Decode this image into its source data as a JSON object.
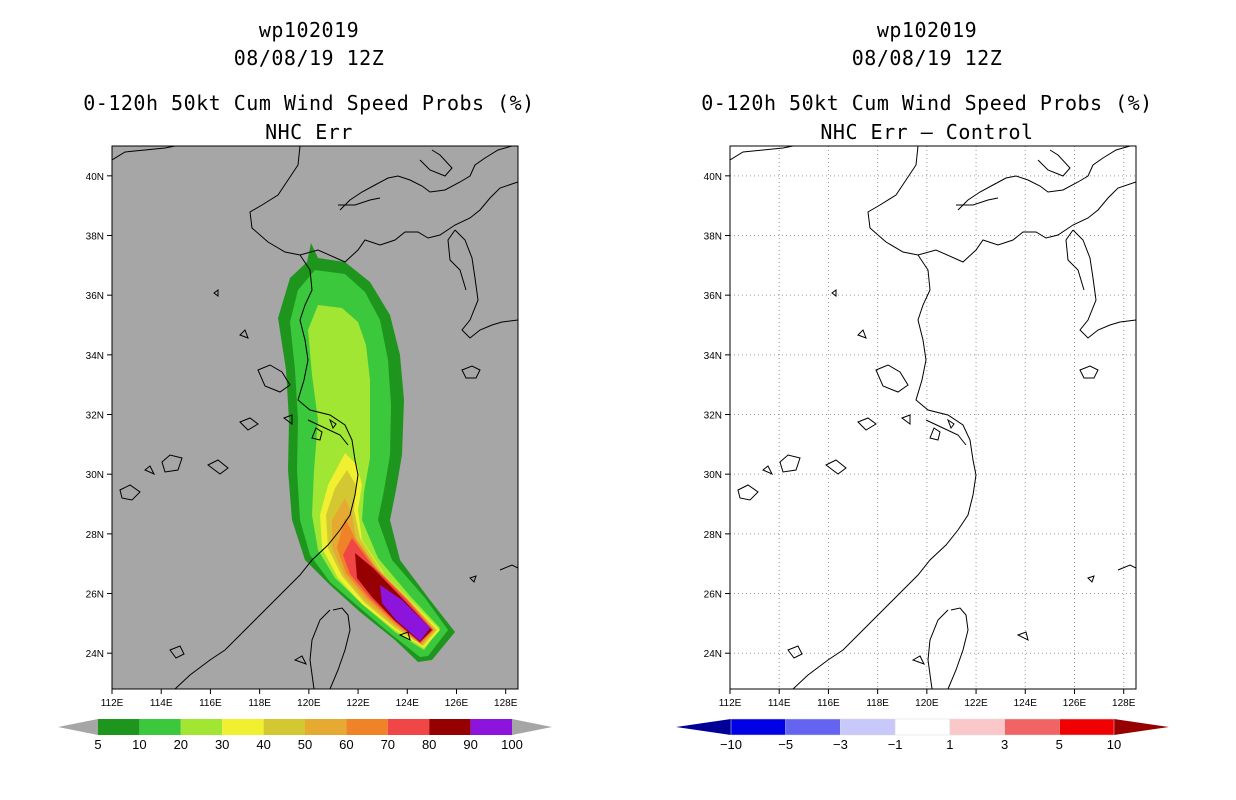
{
  "colors": {
    "land_background": "#a6a6a6",
    "coast": "#000000",
    "grid": "#9a9a9a"
  },
  "panels": [
    {
      "title_storm": "wp102019",
      "title_date": "08/08/19 12Z",
      "title_product": "0-120h 50kt Cum Wind Speed Probs (%)",
      "title_sub": "NHC Err",
      "x_ticks": [
        "112E",
        "114E",
        "116E",
        "118E",
        "120E",
        "122E",
        "124E",
        "126E",
        "128E"
      ],
      "y_ticks": [
        "24N",
        "26N",
        "28N",
        "30N",
        "32N",
        "34N",
        "36N",
        "38N",
        "40N"
      ],
      "colorbar_labels": [
        "5",
        "10",
        "20",
        "30",
        "40",
        "50",
        "60",
        "70",
        "80",
        "90",
        "100"
      ],
      "colorbar_colors": [
        "#1e961e",
        "#3cc83c",
        "#a0e632",
        "#f0f030",
        "#d4c832",
        "#e6aa32",
        "#f08228",
        "#f04646",
        "#960000",
        "#8c14dc"
      ],
      "colorbar_end_color": "#a6a6a6"
    },
    {
      "title_storm": "wp102019",
      "title_date": "08/08/19 12Z",
      "title_product": "0-120h 50kt Cum Wind Speed Probs (%)",
      "title_sub": "NHC Err – Control",
      "x_ticks": [
        "112E",
        "114E",
        "116E",
        "118E",
        "120E",
        "122E",
        "124E",
        "126E",
        "128E"
      ],
      "y_ticks": [
        "24N",
        "26N",
        "28N",
        "30N",
        "32N",
        "34N",
        "36N",
        "38N",
        "40N"
      ],
      "colorbar_labels": [
        "−10",
        "−5",
        "−3",
        "−1",
        "1",
        "3",
        "5",
        "10"
      ],
      "colorbar_colors": [
        "#0000e6",
        "#6464f0",
        "#c8c8fa",
        "#ffffff",
        "#fac8c8",
        "#f06464",
        "#f00000"
      ],
      "colorbar_end_left": "#000096",
      "colorbar_end_right": "#960000"
    }
  ],
  "map_data": {
    "type": "probability-swath",
    "lon_range": [
      112,
      128.5
    ],
    "lat_range": [
      22.8,
      41
    ],
    "swath_centerline": [
      [
        124.8,
        24.3
      ],
      [
        123.6,
        25.6
      ],
      [
        122.3,
        27.0
      ],
      [
        121.5,
        28.8
      ],
      [
        121.0,
        30.5
      ],
      [
        120.9,
        32.3
      ],
      [
        120.7,
        34.0
      ],
      [
        120.2,
        35.8
      ],
      [
        119.9,
        37.2
      ]
    ],
    "probability_levels": [
      5,
      10,
      20,
      30,
      40,
      50,
      60,
      70,
      80,
      90,
      100
    ]
  }
}
